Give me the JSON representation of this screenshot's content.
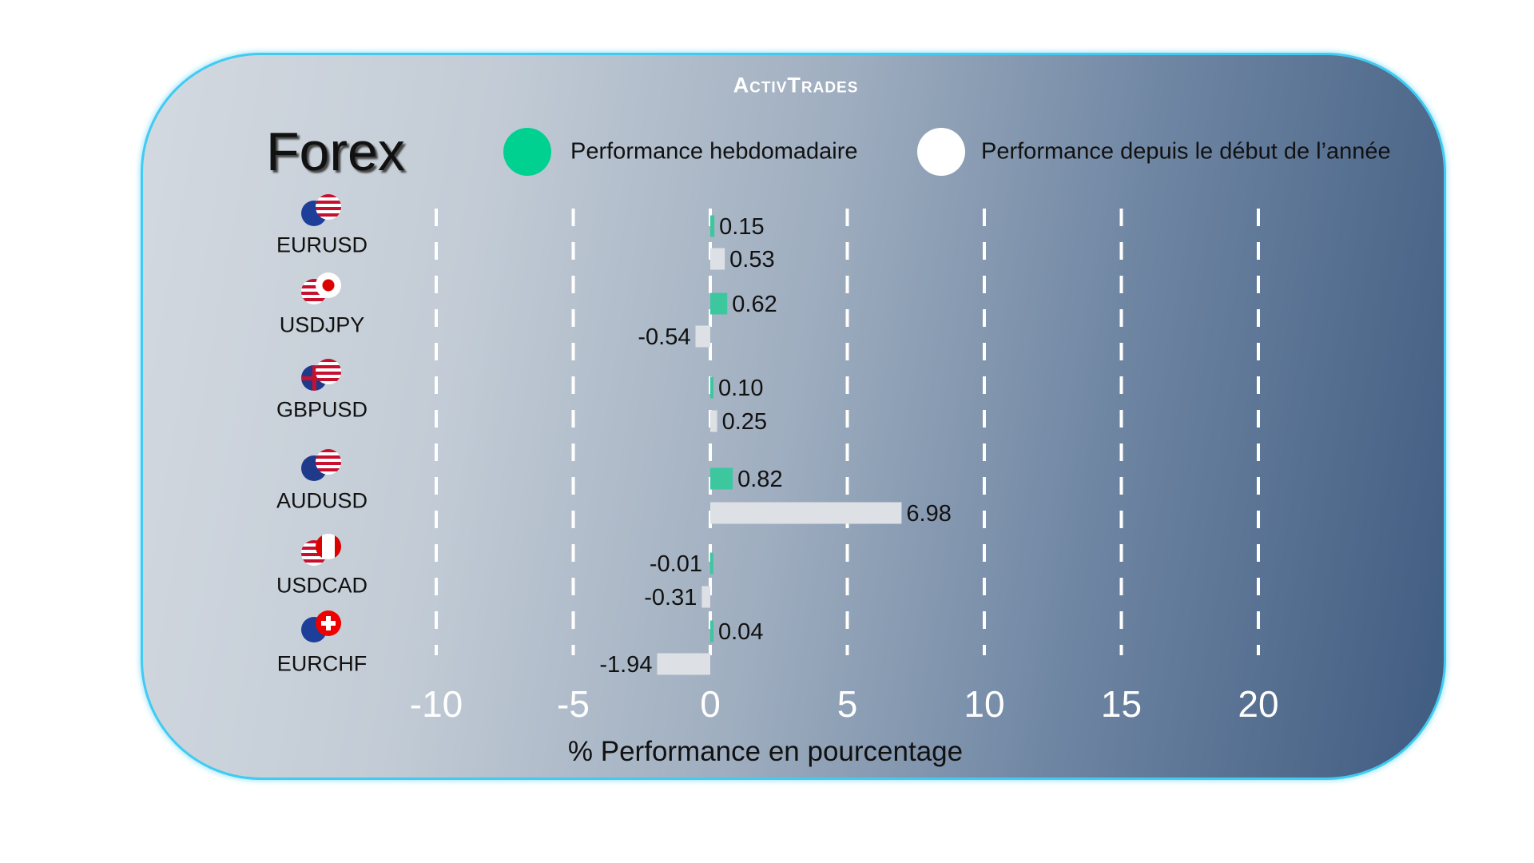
{
  "brand": "ActivTrades",
  "title": "Forex",
  "colors": {
    "weekly": "#3cc79f",
    "ytd": "#dde1e6",
    "border": "#3fcbf2"
  },
  "legend": [
    {
      "label": "Performance hebdomadaire",
      "color": "#00d090"
    },
    {
      "label": "Performance depuis le début de l’année",
      "color": "#ffffff"
    }
  ],
  "chart_data": {
    "type": "bar",
    "orientation": "horizontal",
    "categories": [
      "EURUSD",
      "USDJPY",
      "GBPUSD",
      "AUDUSD",
      "USDCAD",
      "EURCHF"
    ],
    "series": [
      {
        "name": "Performance hebdomadaire",
        "values": [
          0.15,
          0.62,
          0.1,
          0.82,
          -0.01,
          0.04
        ],
        "labels": [
          "0.15",
          "0.62",
          "0.10",
          "0.82",
          "-0.01",
          "0.04"
        ]
      },
      {
        "name": "Performance depuis le début de l’année",
        "values": [
          0.53,
          -0.54,
          0.25,
          6.98,
          -0.31,
          -1.94
        ],
        "labels": [
          "0.53",
          "-0.54",
          "0.25",
          "6.98",
          "-0.31",
          "-1.94"
        ]
      }
    ],
    "xlabel": "% Performance en pourcentage",
    "xlim": [
      -10,
      20
    ],
    "xticks": [
      "-10",
      "-5",
      "0",
      "5",
      "10",
      "15",
      "20"
    ],
    "grid": "vertical dashed",
    "legend": "top"
  }
}
